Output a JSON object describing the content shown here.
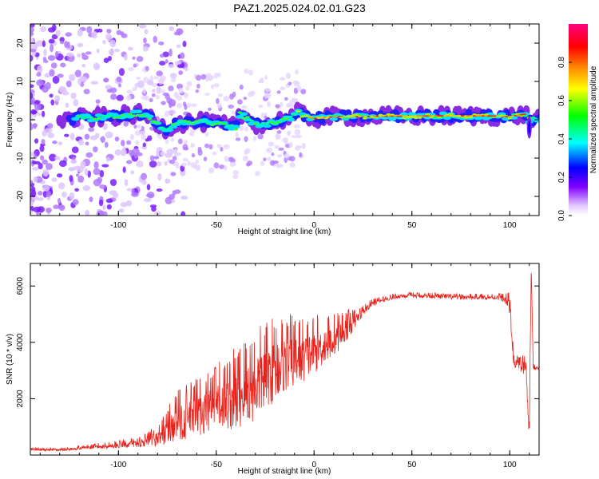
{
  "figure": {
    "title": "PAZ1.2025.024.02.01.G23"
  },
  "chart_data": [
    {
      "type": "heatmap",
      "xlabel": "Height of straight line (km)",
      "ylabel": "Frequency (Hz)",
      "xlim": [
        -145,
        115
      ],
      "ylim": [
        -25,
        25
      ],
      "xticks": [
        -100,
        -50,
        0,
        50,
        100
      ],
      "yticks": [
        -20,
        -10,
        0,
        10,
        20
      ],
      "colorbar": {
        "label": "Normalized spectral amplitude",
        "range": [
          0,
          1
        ],
        "ticks": [
          0.0,
          0.2,
          0.4,
          0.6,
          0.8
        ],
        "colormap": [
          "#ffffff",
          "#e6ccff",
          "#8000ff",
          "#0000ff",
          "#00ffff",
          "#00ff00",
          "#ffff00",
          "#ff8000",
          "#ff0000",
          "#ff0080"
        ]
      },
      "ridge": [
        {
          "x": -128,
          "f": 0.0
        },
        {
          "x": -120,
          "f": 0.4
        },
        {
          "x": -110,
          "f": 0.6
        },
        {
          "x": -100,
          "f": 1.0
        },
        {
          "x": -90,
          "f": 1.5
        },
        {
          "x": -85,
          "f": 1.0
        },
        {
          "x": -80,
          "f": -1.0
        },
        {
          "x": -75,
          "f": -2.5
        },
        {
          "x": -70,
          "f": -1.0
        },
        {
          "x": -60,
          "f": -0.5
        },
        {
          "x": -50,
          "f": -1.0
        },
        {
          "x": -45,
          "f": -1.5
        },
        {
          "x": -40,
          "f": -2.0
        },
        {
          "x": -38,
          "f": 1.5
        },
        {
          "x": -35,
          "f": 0.5
        },
        {
          "x": -30,
          "f": -1.0
        },
        {
          "x": -25,
          "f": -1.5
        },
        {
          "x": -20,
          "f": -0.5
        },
        {
          "x": -10,
          "f": 1.0
        },
        {
          "x": -8,
          "f": 2.0
        },
        {
          "x": -5,
          "f": 1.0
        },
        {
          "x": 0,
          "f": 0.3
        },
        {
          "x": 10,
          "f": 0.8
        },
        {
          "x": 30,
          "f": 0.9
        },
        {
          "x": 60,
          "f": 1.0
        },
        {
          "x": 90,
          "f": 1.0
        },
        {
          "x": 100,
          "f": 0.8
        },
        {
          "x": 108,
          "f": 1.5
        },
        {
          "x": 110,
          "f": 0.0
        },
        {
          "x": 115,
          "f": 0.5
        }
      ]
    },
    {
      "type": "line",
      "xlabel": "Height of straight line (km)",
      "ylabel": "SNR (10 * v/v)",
      "xlim": [
        -145,
        115
      ],
      "ylim": [
        0,
        6800
      ],
      "xticks": [
        -100,
        -50,
        0,
        50,
        100
      ],
      "yticks": [
        2000,
        4000,
        6000
      ],
      "line_color": "#e8221b",
      "series": [
        {
          "x": [
            -145,
            -130,
            -120,
            -110,
            -100,
            -90,
            -85,
            -80,
            -75,
            -70,
            -65,
            -60,
            -55,
            -50,
            -45,
            -40,
            -35,
            -30,
            -25,
            -20,
            -15,
            -10,
            -5,
            0,
            5,
            10,
            15,
            20,
            25,
            30,
            35,
            40,
            45,
            50,
            55,
            60,
            70,
            80,
            90,
            95,
            98,
            100,
            102,
            105,
            108,
            109,
            110,
            111,
            112,
            115
          ],
          "y": [
            200,
            180,
            250,
            300,
            350,
            420,
            500,
            600,
            900,
            1200,
            1300,
            1500,
            1600,
            1800,
            1900,
            2000,
            2300,
            2500,
            2800,
            3100,
            3300,
            3400,
            3500,
            3700,
            3900,
            4100,
            4400,
            4700,
            5100,
            5400,
            5500,
            5600,
            5650,
            5650,
            5650,
            5650,
            5600,
            5600,
            5600,
            5600,
            5500,
            5300,
            3300,
            3200,
            3100,
            2000,
            800,
            6700,
            3100,
            3100
          ],
          "noise_amp": [
            40,
            40,
            60,
            80,
            100,
            150,
            200,
            300,
            500,
            700,
            800,
            800,
            900,
            900,
            1000,
            1200,
            1300,
            1300,
            1200,
            1200,
            1100,
            1000,
            900,
            800,
            700,
            600,
            500,
            300,
            150,
            100,
            80,
            80,
            80,
            80,
            80,
            80,
            80,
            80,
            80,
            100,
            150,
            300,
            200,
            200,
            300,
            500,
            400,
            0,
            80,
            60
          ]
        }
      ]
    }
  ]
}
